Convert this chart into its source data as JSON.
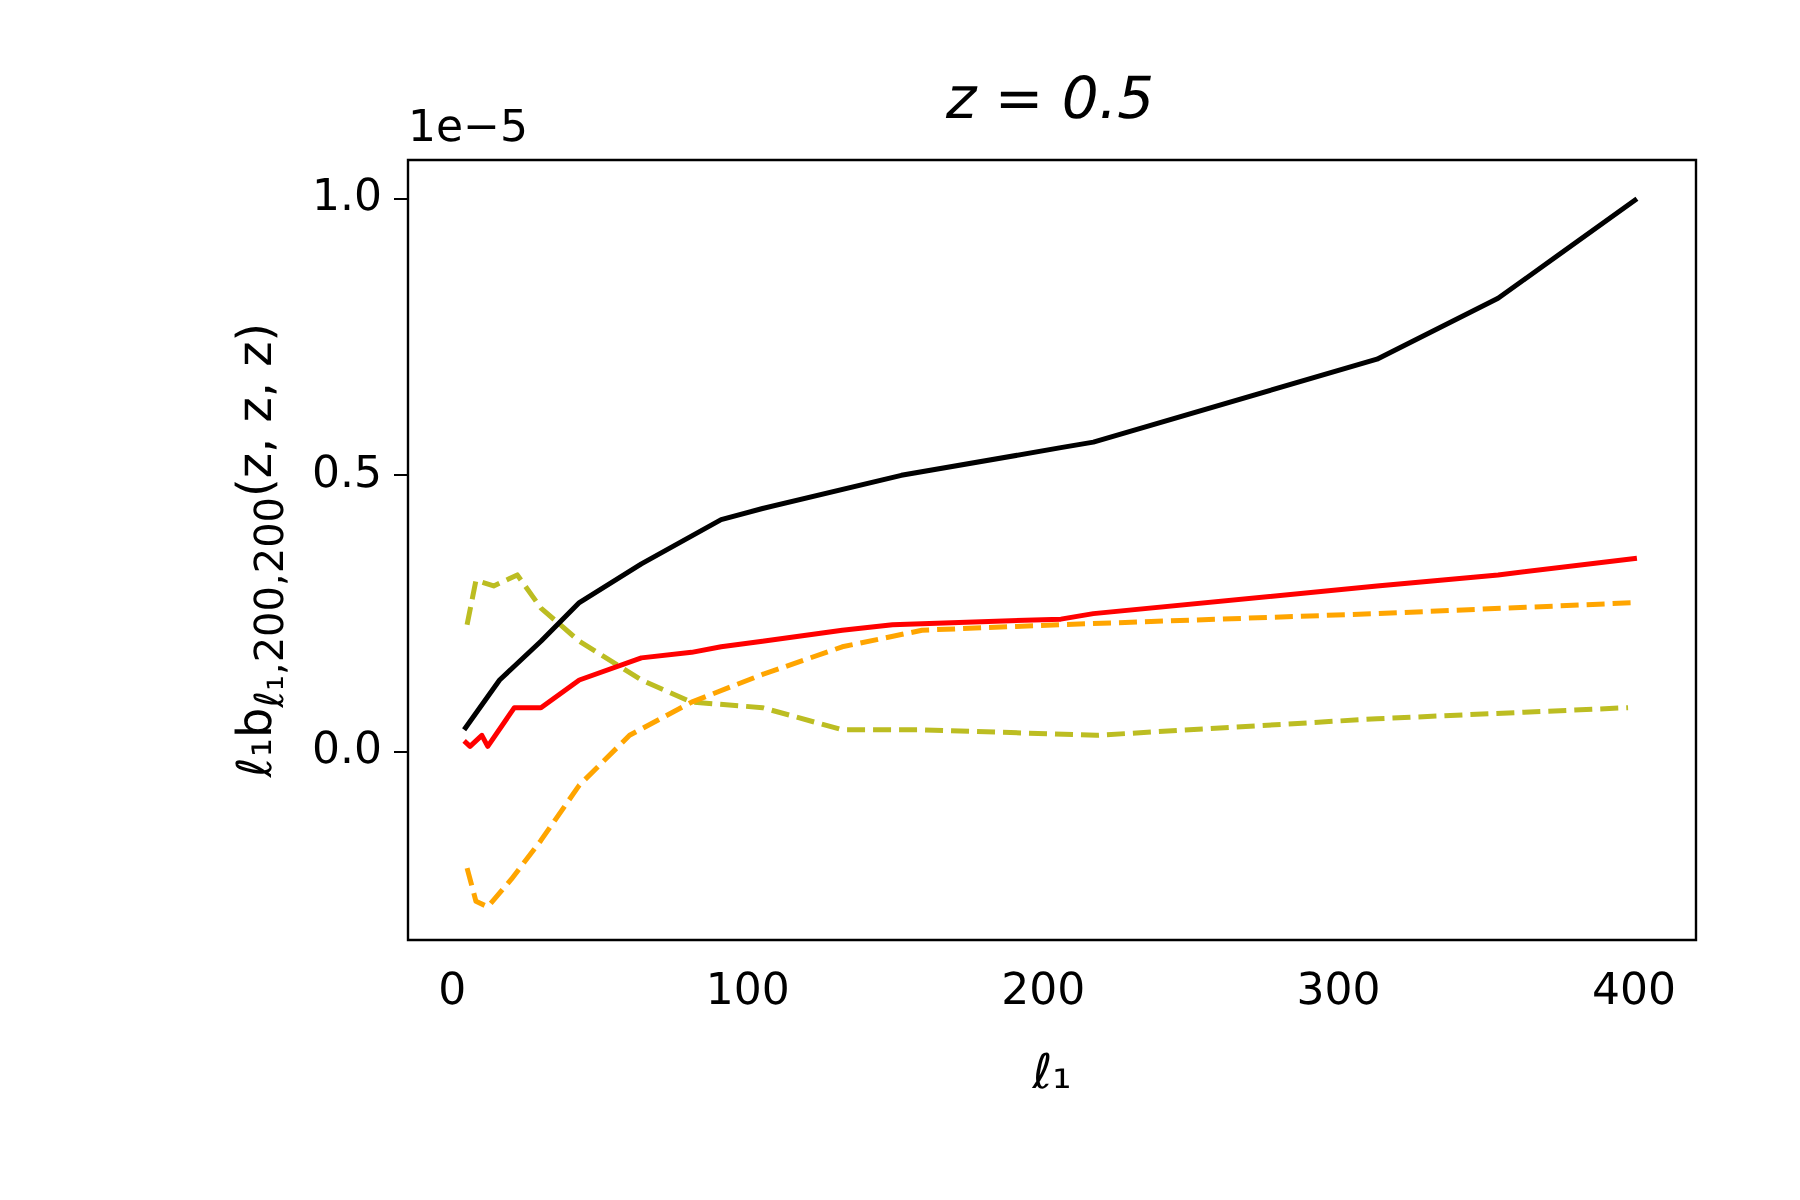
{
  "chart_data": {
    "type": "line",
    "title": "z = 0.5",
    "xlabel": "ℓ₁",
    "ylabel": "ℓ₁b$_{ℓ₁,200,200}$(z, z, z)",
    "annotations": [
      "1e−5"
    ],
    "xlim": [
      -15,
      421
    ],
    "xticks": [
      0,
      100,
      200,
      300,
      400
    ],
    "ylim": [
      -0.34,
      1.07
    ],
    "yticks": [
      {
        "value": 0,
        "label": "0.0"
      },
      {
        "value": 0.5,
        "label": "0.5"
      },
      {
        "value": 1,
        "label": "1.0"
      }
    ],
    "grid": false,
    "legend": false,
    "marker": "none",
    "series": [
      {
        "color": "#000000",
        "line_style": "solid",
        "x": [
          4,
          16,
          30,
          43,
          64,
          91,
          105,
          152,
          206,
          217,
          313,
          354,
          401
        ],
        "values": [
          0.04,
          0.13,
          0.2,
          0.27,
          0.34,
          0.42,
          0.44,
          0.5,
          0.55,
          0.56,
          0.71,
          0.82,
          1.0
        ]
      },
      {
        "color": "#ff0000",
        "line_style": "solid",
        "x": [
          4,
          6,
          10,
          12,
          21,
          30,
          43,
          64,
          81,
          91,
          105,
          132,
          149,
          206,
          217,
          313,
          354,
          401
        ],
        "values": [
          0.02,
          0.01,
          0.03,
          0.01,
          0.08,
          0.08,
          0.13,
          0.17,
          0.18,
          0.19,
          0.2,
          0.22,
          0.23,
          0.24,
          0.25,
          0.3,
          0.32,
          0.35
        ]
      },
      {
        "color": "#ffa500",
        "line_style": "dashed",
        "x": [
          5,
          8,
          12,
          20,
          30,
          43,
          60,
          81,
          105,
          132,
          159,
          206,
          313,
          401
        ],
        "values": [
          -0.21,
          -0.27,
          -0.28,
          -0.23,
          -0.16,
          -0.06,
          0.03,
          0.09,
          0.14,
          0.19,
          0.22,
          0.23,
          0.25,
          0.27
        ]
      },
      {
        "color": "#bcbd22",
        "line_style": "dashed",
        "x": [
          5,
          8,
          14,
          22,
          30,
          43,
          64,
          81,
          105,
          132,
          159,
          218,
          313,
          398
        ],
        "values": [
          0.23,
          0.31,
          0.3,
          0.32,
          0.26,
          0.2,
          0.13,
          0.09,
          0.08,
          0.04,
          0.04,
          0.03,
          0.06,
          0.08
        ]
      }
    ]
  }
}
